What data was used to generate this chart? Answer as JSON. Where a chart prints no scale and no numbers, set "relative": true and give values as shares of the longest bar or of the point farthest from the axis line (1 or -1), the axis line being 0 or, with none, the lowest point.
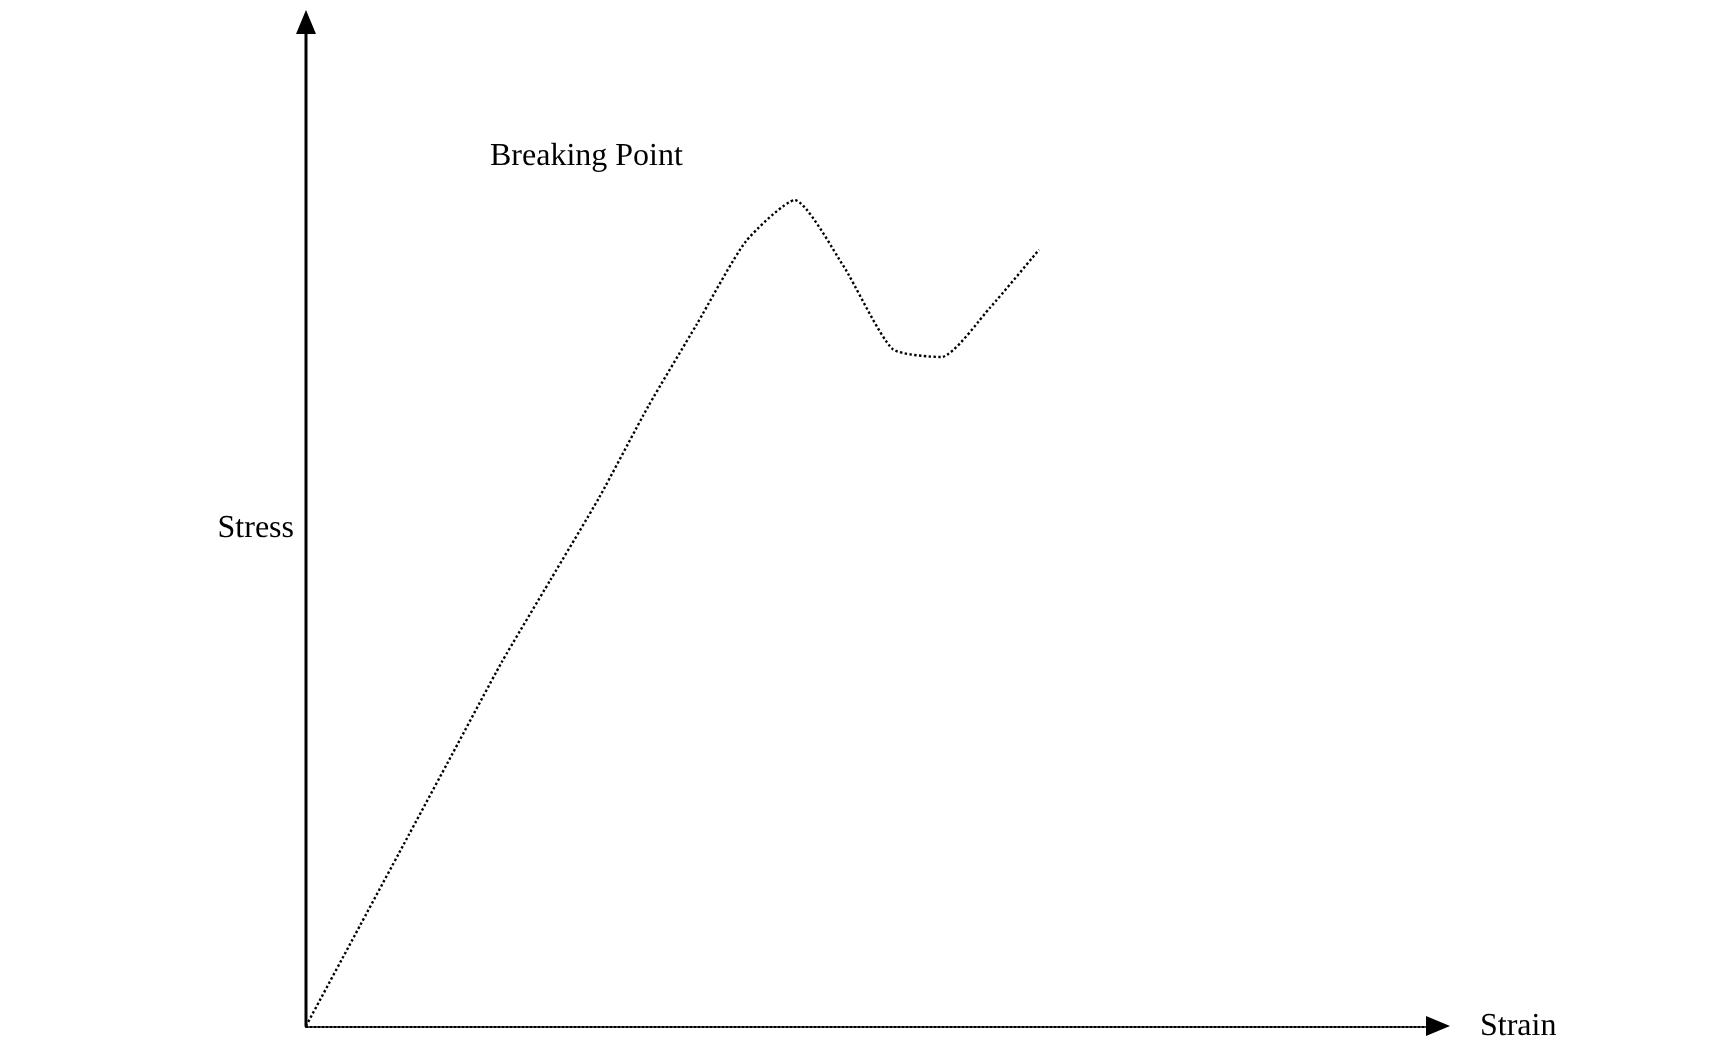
{
  "chart_data": {
    "type": "line",
    "relative": true,
    "xlabel": "Strain",
    "ylabel": "Stress",
    "categories": [
      null,
      null,
      null,
      null,
      null,
      null,
      null,
      null,
      null,
      null,
      null,
      null,
      null,
      null,
      null,
      null,
      null,
      null,
      null,
      null,
      null,
      null,
      null,
      null
    ],
    "series": [
      {
        "color": "#000000",
        "values": [
          0,
          0.11,
          0.22,
          0.33,
          0.44,
          0.54,
          0.64,
          0.75,
          0.85,
          0.95,
          1,
          0.92,
          0.82,
          0.81,
          0.87,
          0.94,
          null,
          null,
          null,
          null,
          null,
          null,
          null,
          null
        ]
      }
    ],
    "annotations": [
      "Breaking Point"
    ],
    "line_style": "dotted",
    "marker": "none",
    "grid": false
  }
}
